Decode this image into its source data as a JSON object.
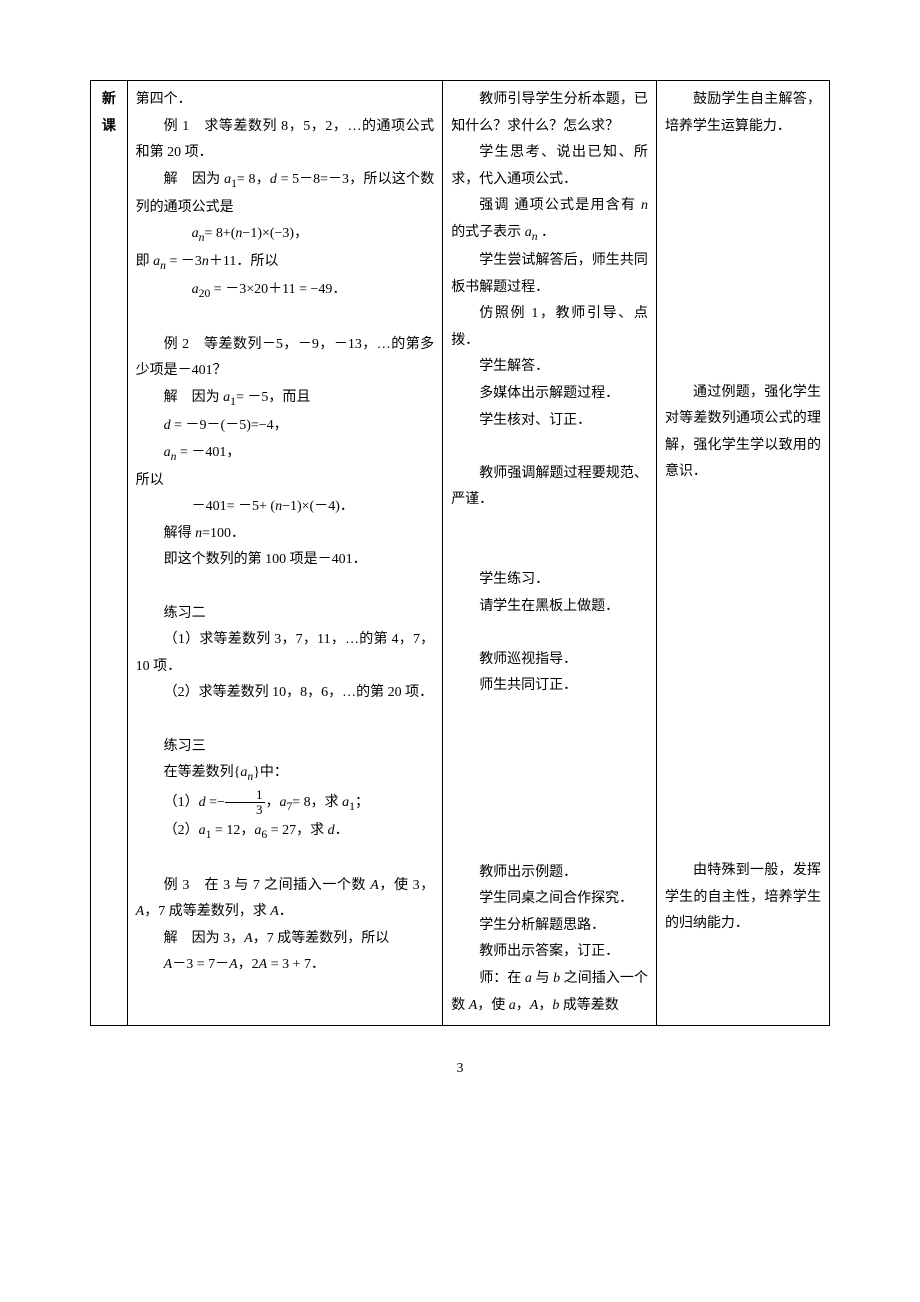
{
  "table": {
    "label_column": {
      "line1": "新",
      "line2": "课"
    },
    "content": {
      "l1": "第四个．",
      "l2_a": "例 1　求等差数列 8，5，2，…的通项公式和第 20 项．",
      "l3_a": "解　因为 ",
      "l3_b": "= 8，",
      "l3_c": " = 5－8=－3，所以这个数列的通项公式是",
      "l4": "= 8+(",
      "l4b": "−1)×(−3)，",
      "l5a": "即 ",
      "l5b": " = －3",
      "l5c": "＋11．所以",
      "l6": " = －3×20＋11 = −49．",
      "l7": "例 2　等差数列－5，－9，－13，…的第多少项是－401？",
      "l8a": "解　因为 ",
      "l8b": "= －5，而且",
      "l9": " = －9－(－5)=−4，",
      "l10": " = －401，",
      "l11": "所以",
      "l12": "－401= －5+ (",
      "l12b": "−1)×(－4)．",
      "l13": "解得 ",
      "l13b": "=100．",
      "l14": "即这个数列的第 100 项是－401．",
      "l15": "练习二",
      "l16": "（1）求等差数列 3，7，11，…的第 4，7，10 项．",
      "l17": "（2）求等差数列 10，8，6，…的第 20 项．",
      "l18": "练习三",
      "l19a": "在等差数列{",
      "l19b": "}中：",
      "l20a": "（1）",
      "l20b": " =−",
      "l20c": "，",
      "l20d": "= 8，求 ",
      "l20e": "；",
      "l21a": "（2）",
      "l21b": " = 12，",
      "l21c": " = 27，求 ",
      "l21d": "．",
      "l22a": "例 3　在 3 与 7 之间插入一个数 ",
      "l22b": "，使 3，",
      "l22c": "，7 成等差数列，求 ",
      "l22d": "．",
      "l23a": "解　因为 3，",
      "l23b": "，7 成等差数列，所以",
      "l24a": "－3 = 7－",
      "l24b": "，2",
      "l24c": " = 3 + 7．"
    },
    "teacher": {
      "t1": "教师引导学生分析本题，已知什么？求什么？怎么求？",
      "t2": "学生思考、说出已知、所求，代入通项公式．",
      "t3a": "强调 通项公式是用含有 ",
      "t3b": " 的式子表示 ",
      "t3c": " ．",
      "t4": "学生尝试解答后，师生共同板书解题过程．",
      "t5": "仿照例 1，教师引导、点拨．",
      "t6": "学生解答．",
      "t7": "多媒体出示解题过程．",
      "t8": "学生核对、订正．",
      "t9": "教师强调解题过程要规范、严谨．",
      "t10": "学生练习．",
      "t11": "请学生在黑板上做题．",
      "t12": "教师巡视指导．",
      "t13": "师生共同订正．",
      "t14": "教师出示例题．",
      "t15": "学生同桌之间合作探究．",
      "t16": "学生分析解题思路．",
      "t17": "教师出示答案，订正．",
      "t18a": "师：在 ",
      "t18b": " 与 ",
      "t18c": " 之间插入一个数 ",
      "t18d": "，使 ",
      "t18e": "，",
      "t18f": "，",
      "t18g": " 成等差数"
    },
    "note": {
      "n1": "鼓励学生自主解答，培养学生运算能力．",
      "n2": "通过例题，强化学生对等差数列通项公式的理解，强化学生学以致用的意识．",
      "n3": "由特殊到一般，发挥学生的自主性，培养学生的归纳能力．"
    }
  },
  "page_number": "3",
  "math_vars": {
    "a1": "a",
    "sub1": "1",
    "d": "d",
    "an": "a",
    "subn": "n",
    "n": "n",
    "a20": "a",
    "sub20": "20",
    "a7": "a",
    "sub7": "7",
    "a6": "a",
    "sub6": "6",
    "A": "A",
    "a": "a",
    "b": "b",
    "frac_num": "1",
    "frac_den": "3"
  },
  "style": {
    "font_size": 14,
    "border_color": "#000000",
    "background_color": "#ffffff",
    "text_color": "#000000"
  }
}
